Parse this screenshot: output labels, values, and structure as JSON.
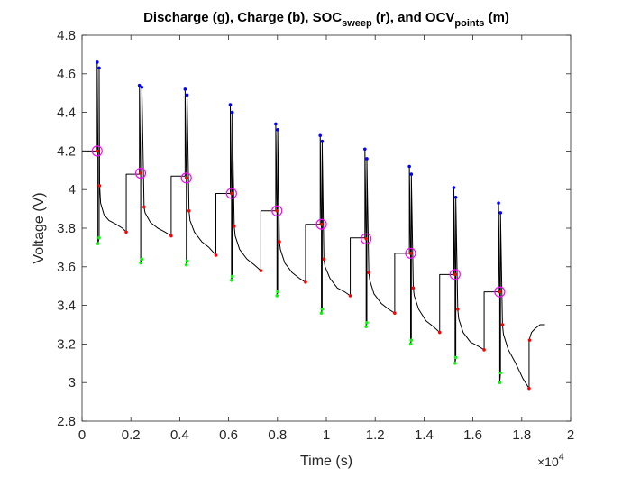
{
  "chart_data": {
    "type": "line",
    "title": {
      "parts": [
        {
          "text": "Discharge (g), Charge (b), SOC"
        },
        {
          "text": "sweep",
          "sub": true
        },
        {
          "text": " (r), and OCV"
        },
        {
          "text": "points",
          "sub": true
        },
        {
          "text": " (m)"
        }
      ]
    },
    "xlabel": "Time (s)",
    "ylabel": "Voltage (V)",
    "x_exponent_label": "×10",
    "x_exponent_power": "4",
    "xlim": [
      0,
      20000
    ],
    "ylim": [
      2.8,
      4.8
    ],
    "x_ticks": [
      0,
      2000,
      4000,
      6000,
      8000,
      10000,
      12000,
      14000,
      16000,
      18000,
      20000
    ],
    "x_tick_labels": [
      "0",
      "0.2",
      "0.4",
      "0.6",
      "0.8",
      "1",
      "1.2",
      "1.4",
      "1.6",
      "1.8",
      "2"
    ],
    "y_ticks": [
      2.8,
      3.0,
      3.2,
      3.4,
      3.6,
      3.8,
      4.0,
      4.2,
      4.4,
      4.6,
      4.8
    ],
    "y_tick_labels": [
      "2.8",
      "3",
      "3.2",
      "3.4",
      "3.6",
      "3.8",
      "4",
      "4.2",
      "4.4",
      "4.6",
      "4.8"
    ],
    "grid": false,
    "colors": {
      "trace": "#000000",
      "discharge": "#00ff00",
      "charge": "#0000ff",
      "soc_sweep": "#ff0000",
      "ocv_points": "#ff00ff"
    },
    "series": [
      {
        "name": "trace",
        "points": [
          [
            0,
            4.2
          ],
          [
            620,
            4.2
          ],
          [
            620,
            4.66
          ],
          [
            650,
            4.2
          ],
          [
            650,
            3.72
          ],
          [
            700,
            3.75
          ],
          [
            700,
            4.63
          ],
          [
            720,
            4.02
          ],
          [
            760,
            3.93
          ],
          [
            900,
            3.87
          ],
          [
            1100,
            3.84
          ],
          [
            1400,
            3.82
          ],
          [
            1650,
            3.8
          ],
          [
            1810,
            3.78
          ],
          [
            1810,
            4.08
          ],
          [
            2350,
            4.08
          ],
          [
            2350,
            4.54
          ],
          [
            2400,
            4.08
          ],
          [
            2400,
            3.62
          ],
          [
            2450,
            3.64
          ],
          [
            2450,
            4.53
          ],
          [
            2540,
            3.91
          ],
          [
            2580,
            3.88
          ],
          [
            2800,
            3.83
          ],
          [
            3100,
            3.8
          ],
          [
            3400,
            3.78
          ],
          [
            3650,
            3.76
          ],
          [
            3650,
            4.07
          ],
          [
            4220,
            4.07
          ],
          [
            4220,
            4.52
          ],
          [
            4270,
            4.06
          ],
          [
            4270,
            3.61
          ],
          [
            4300,
            3.63
          ],
          [
            4300,
            4.49
          ],
          [
            4380,
            3.89
          ],
          [
            4420,
            3.84
          ],
          [
            4600,
            3.78
          ],
          [
            4900,
            3.73
          ],
          [
            5200,
            3.7
          ],
          [
            5480,
            3.66
          ],
          [
            5480,
            3.98
          ],
          [
            6070,
            3.98
          ],
          [
            6070,
            4.44
          ],
          [
            6120,
            3.98
          ],
          [
            6120,
            3.53
          ],
          [
            6150,
            3.55
          ],
          [
            6150,
            4.4
          ],
          [
            6230,
            3.81
          ],
          [
            6270,
            3.76
          ],
          [
            6450,
            3.69
          ],
          [
            6750,
            3.64
          ],
          [
            7050,
            3.61
          ],
          [
            7320,
            3.58
          ],
          [
            7320,
            3.89
          ],
          [
            7930,
            3.89
          ],
          [
            7930,
            4.34
          ],
          [
            7980,
            3.89
          ],
          [
            7980,
            3.45
          ],
          [
            8010,
            3.47
          ],
          [
            8010,
            4.31
          ],
          [
            8080,
            3.73
          ],
          [
            8120,
            3.69
          ],
          [
            8300,
            3.62
          ],
          [
            8600,
            3.57
          ],
          [
            8900,
            3.54
          ],
          [
            9150,
            3.52
          ],
          [
            9150,
            3.82
          ],
          [
            9750,
            3.82
          ],
          [
            9750,
            4.28
          ],
          [
            9800,
            3.82
          ],
          [
            9800,
            3.36
          ],
          [
            9830,
            3.38
          ],
          [
            9830,
            4.25
          ],
          [
            9900,
            3.64
          ],
          [
            9950,
            3.6
          ],
          [
            10150,
            3.54
          ],
          [
            10450,
            3.49
          ],
          [
            10750,
            3.47
          ],
          [
            10980,
            3.45
          ],
          [
            10980,
            3.75
          ],
          [
            11580,
            3.75
          ],
          [
            11580,
            4.21
          ],
          [
            11630,
            3.75
          ],
          [
            11630,
            3.29
          ],
          [
            11660,
            3.31
          ],
          [
            11660,
            4.16
          ],
          [
            11740,
            3.57
          ],
          [
            11780,
            3.53
          ],
          [
            11950,
            3.46
          ],
          [
            12250,
            3.41
          ],
          [
            12550,
            3.38
          ],
          [
            12800,
            3.36
          ],
          [
            12800,
            3.67
          ],
          [
            13400,
            3.67
          ],
          [
            13400,
            4.12
          ],
          [
            13450,
            3.67
          ],
          [
            13450,
            3.2
          ],
          [
            13480,
            3.22
          ],
          [
            13480,
            4.08
          ],
          [
            13560,
            3.49
          ],
          [
            13600,
            3.45
          ],
          [
            13780,
            3.38
          ],
          [
            14080,
            3.32
          ],
          [
            14380,
            3.29
          ],
          [
            14640,
            3.26
          ],
          [
            14640,
            3.56
          ],
          [
            15220,
            3.56
          ],
          [
            15220,
            4.01
          ],
          [
            15270,
            3.56
          ],
          [
            15270,
            3.1
          ],
          [
            15300,
            3.13
          ],
          [
            15300,
            3.96
          ],
          [
            15380,
            3.38
          ],
          [
            15420,
            3.33
          ],
          [
            15600,
            3.26
          ],
          [
            15900,
            3.21
          ],
          [
            16200,
            3.19
          ],
          [
            16460,
            3.17
          ],
          [
            16460,
            3.47
          ],
          [
            17050,
            3.47
          ],
          [
            17050,
            3.93
          ],
          [
            17100,
            3.47
          ],
          [
            17100,
            3.0
          ],
          [
            17130,
            3.05
          ],
          [
            17130,
            3.88
          ],
          [
            17210,
            3.3
          ],
          [
            17250,
            3.25
          ],
          [
            17450,
            3.17
          ],
          [
            17750,
            3.1
          ],
          [
            18050,
            3.02
          ],
          [
            18300,
            2.97
          ],
          [
            18300,
            3.22
          ],
          [
            18400,
            3.26
          ],
          [
            18550,
            3.28
          ],
          [
            18750,
            3.3
          ],
          [
            18950,
            3.3
          ]
        ]
      },
      {
        "name": "discharge",
        "points": [
          [
            650,
            3.72
          ],
          [
            700,
            3.75
          ],
          [
            2400,
            3.62
          ],
          [
            2450,
            3.64
          ],
          [
            4270,
            3.61
          ],
          [
            4300,
            3.63
          ],
          [
            6120,
            3.53
          ],
          [
            6150,
            3.55
          ],
          [
            7980,
            3.45
          ],
          [
            8010,
            3.47
          ],
          [
            9800,
            3.36
          ],
          [
            9830,
            3.38
          ],
          [
            11630,
            3.29
          ],
          [
            11660,
            3.31
          ],
          [
            13450,
            3.2
          ],
          [
            13480,
            3.22
          ],
          [
            15270,
            3.1
          ],
          [
            15300,
            3.13
          ],
          [
            17100,
            3.0
          ],
          [
            17130,
            3.05
          ]
        ]
      },
      {
        "name": "charge",
        "points": [
          [
            620,
            4.66
          ],
          [
            700,
            4.63
          ],
          [
            2350,
            4.54
          ],
          [
            2450,
            4.53
          ],
          [
            4220,
            4.52
          ],
          [
            4300,
            4.49
          ],
          [
            6070,
            4.44
          ],
          [
            6150,
            4.4
          ],
          [
            7930,
            4.34
          ],
          [
            8010,
            4.31
          ],
          [
            9750,
            4.28
          ],
          [
            9830,
            4.25
          ],
          [
            11580,
            4.21
          ],
          [
            11660,
            4.16
          ],
          [
            13400,
            4.12
          ],
          [
            13480,
            4.08
          ],
          [
            15220,
            4.01
          ],
          [
            15300,
            3.96
          ],
          [
            17050,
            3.93
          ],
          [
            17130,
            3.88
          ]
        ]
      },
      {
        "name": "soc_sweep",
        "points": [
          [
            720,
            4.02
          ],
          [
            1810,
            3.78
          ],
          [
            2540,
            3.91
          ],
          [
            3650,
            3.76
          ],
          [
            4380,
            3.89
          ],
          [
            5480,
            3.66
          ],
          [
            6230,
            3.81
          ],
          [
            7320,
            3.58
          ],
          [
            8080,
            3.73
          ],
          [
            9150,
            3.52
          ],
          [
            9900,
            3.64
          ],
          [
            10980,
            3.45
          ],
          [
            11740,
            3.57
          ],
          [
            12800,
            3.36
          ],
          [
            13560,
            3.49
          ],
          [
            14640,
            3.26
          ],
          [
            15380,
            3.38
          ],
          [
            16460,
            3.17
          ],
          [
            17210,
            3.3
          ],
          [
            18300,
            2.97
          ],
          [
            18320,
            3.22
          ]
        ]
      },
      {
        "name": "ocv_points",
        "points": [
          [
            620,
            4.2
          ],
          [
            2400,
            4.085
          ],
          [
            4270,
            4.06
          ],
          [
            6120,
            3.98
          ],
          [
            7980,
            3.89
          ],
          [
            9800,
            3.82
          ],
          [
            11630,
            3.745
          ],
          [
            13450,
            3.67
          ],
          [
            15270,
            3.56
          ],
          [
            17100,
            3.47
          ]
        ]
      }
    ]
  }
}
